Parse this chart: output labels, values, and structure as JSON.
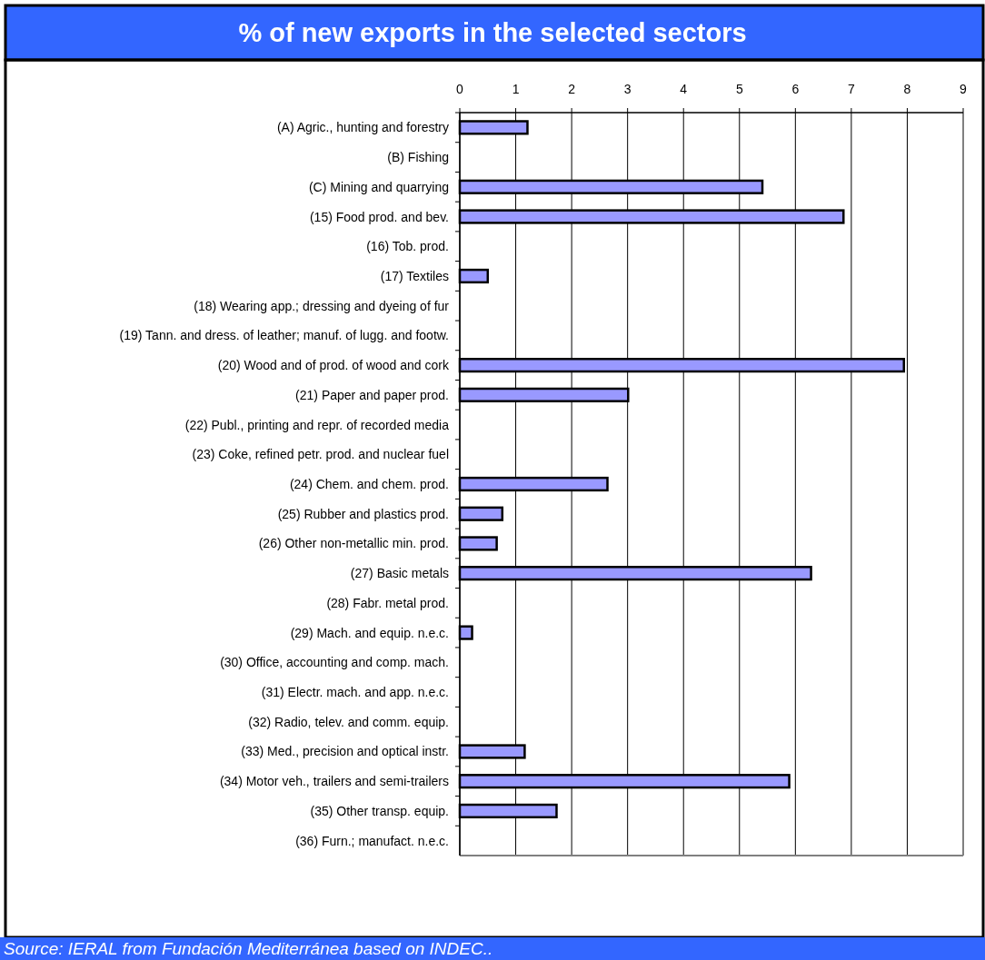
{
  "chart_data": {
    "type": "bar",
    "title": "% of new exports in the selected sectors",
    "orientation": "horizontal",
    "categories": [
      "(A) Agric., hunting and forestry",
      "(B) Fishing",
      "(C) Mining and quarrying",
      "(15) Food prod. and bev.",
      "(16) Tob. prod.",
      "(17) Textiles",
      "(18) Wearing app.; dressing and dyeing of fur",
      "(19) Tann. and dress. of leather; manuf. of lugg. and footw.",
      "(20) Wood and of prod. of wood and cork",
      "(21) Paper and paper prod.",
      "(22) Publ., printing and repr. of recorded media",
      "(23) Coke, refined petr. prod. and nuclear fuel",
      "(24) Chem. and chem. prod.",
      "(25) Rubber and plastics prod.",
      "(26) Other non-metallic min. prod.",
      "(27) Basic metals",
      "(28) Fabr. metal prod.",
      "(29) Mach. and equip. n.e.c.",
      "(30) Office, accounting and comp. mach.",
      "(31) Electr. mach. and app. n.e.c.",
      "(32) Radio, telev. and comm. equip.",
      "(33) Med., precision and optical instr.",
      "(34) Motor veh., trailers and semi-trailers",
      "(35) Other transp. equip.",
      "(36) Furn.; manufact. n.e.c."
    ],
    "values": [
      1.21,
      null,
      5.41,
      6.86,
      null,
      0.5,
      null,
      null,
      7.94,
      3.01,
      null,
      null,
      2.64,
      0.76,
      0.66,
      6.28,
      null,
      0.22,
      null,
      null,
      null,
      1.16,
      5.89,
      1.73,
      null
    ],
    "color": "#9999ff",
    "xlim": [
      0,
      9
    ],
    "xticks": [
      0,
      1,
      2,
      3,
      4,
      5,
      6,
      7,
      8,
      9
    ],
    "grid": "x",
    "annotations": [
      "Source: IERAL from Fundación Mediterránea based on INDEC.."
    ]
  }
}
